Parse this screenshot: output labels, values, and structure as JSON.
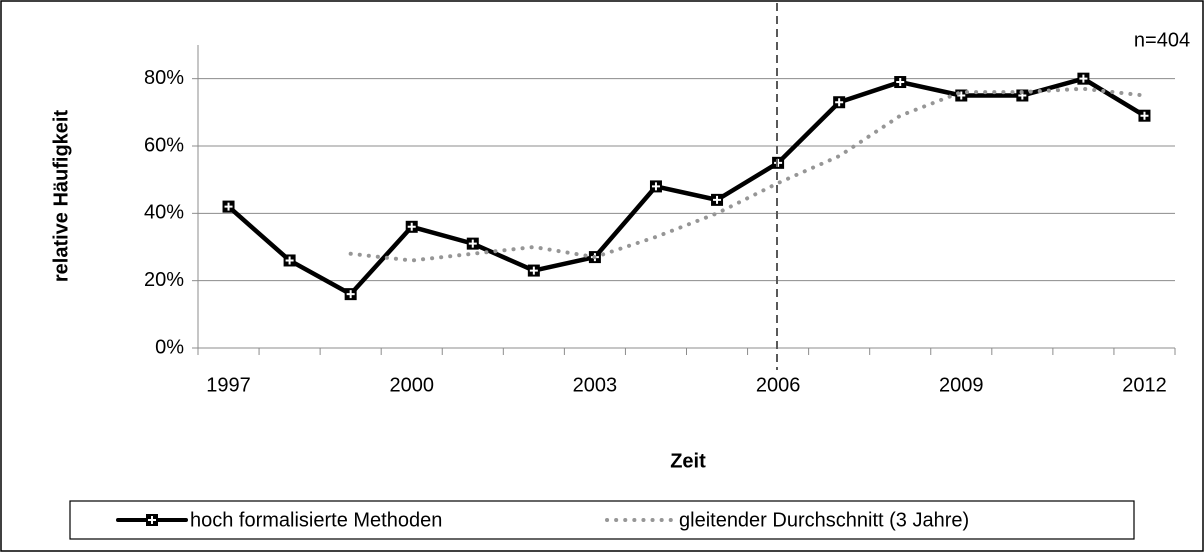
{
  "chart_data": {
    "type": "line",
    "annotation": "n=404",
    "x_label": "Zeit",
    "y_label": "relative Häufigkeit",
    "categories": [
      "1997",
      null,
      null,
      "2000",
      null,
      null,
      "2003",
      null,
      null,
      "2006",
      null,
      null,
      "2009",
      null,
      null,
      "2012"
    ],
    "series": [
      {
        "name": "hoch formalisierte Methoden",
        "color": "#000000",
        "style": "solid",
        "values": [
          42,
          26,
          16,
          36,
          31,
          23,
          27,
          48,
          44,
          55,
          73,
          79,
          75,
          75,
          80,
          69
        ]
      },
      {
        "name": "gleitender Durchschnitt (3 Jahre)",
        "color": "#969696",
        "style": "dotted",
        "values": [
          null,
          null,
          28,
          26,
          28,
          30,
          27,
          33,
          40,
          49,
          57,
          69,
          76,
          76,
          77,
          75
        ]
      }
    ],
    "ylim": [
      0,
      90
    ],
    "yticks": [
      {
        "value": 0,
        "label": "0%"
      },
      {
        "value": 20,
        "label": "20%"
      },
      {
        "value": 40,
        "label": "40%"
      },
      {
        "value": 60,
        "label": "60%"
      },
      {
        "value": 80,
        "label": "80%"
      }
    ],
    "grid": true
  }
}
